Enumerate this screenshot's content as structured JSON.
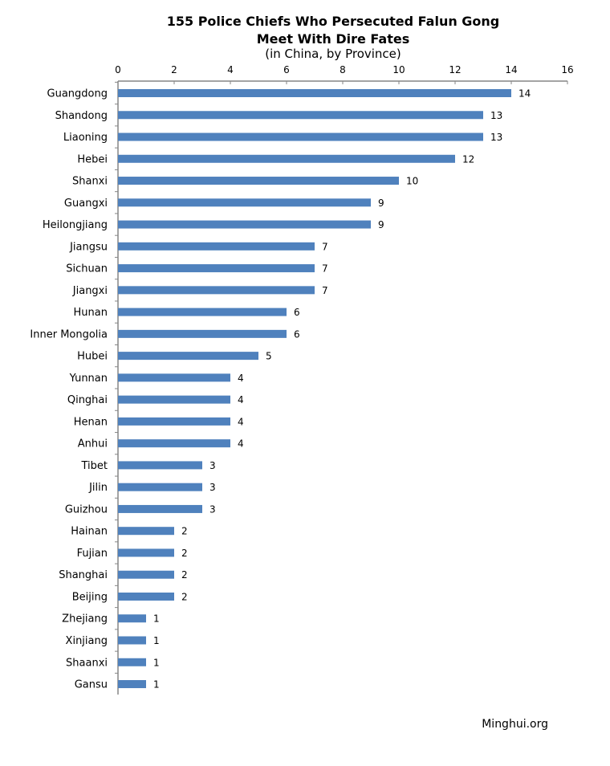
{
  "chart_data": {
    "type": "bar",
    "orientation": "horizontal",
    "title": "155 Police Chiefs Who Persecuted Falun Gong",
    "title_line2": "Meet With Dire Fates",
    "subtitle": "(in China, by Province)",
    "xlabel": "",
    "ylabel": "",
    "xlim": [
      0,
      16
    ],
    "xticks": [
      0,
      2,
      4,
      6,
      8,
      10,
      12,
      14,
      16
    ],
    "axis_position": "top",
    "grid": false,
    "bar_color": "#4f81bd",
    "categories": [
      "Guangdong",
      "Shandong",
      "Liaoning",
      "Hebei",
      "Shanxi",
      "Guangxi",
      "Heilongjiang",
      "Jiangsu",
      "Sichuan",
      "Jiangxi",
      "Hunan",
      "Inner Mongolia",
      "Hubei",
      "Yunnan",
      "Qinghai",
      "Henan",
      "Anhui",
      "Tibet",
      "Jilin",
      "Guizhou",
      "Hainan",
      "Fujian",
      "Shanghai",
      "Beijing",
      "Zhejiang",
      "Xinjiang",
      "Shaanxi",
      "Gansu"
    ],
    "values": [
      14,
      13,
      13,
      12,
      10,
      9,
      9,
      7,
      7,
      7,
      6,
      6,
      5,
      4,
      4,
      4,
      4,
      3,
      3,
      3,
      2,
      2,
      2,
      2,
      1,
      1,
      1,
      1
    ],
    "source": "Minghui.org"
  }
}
